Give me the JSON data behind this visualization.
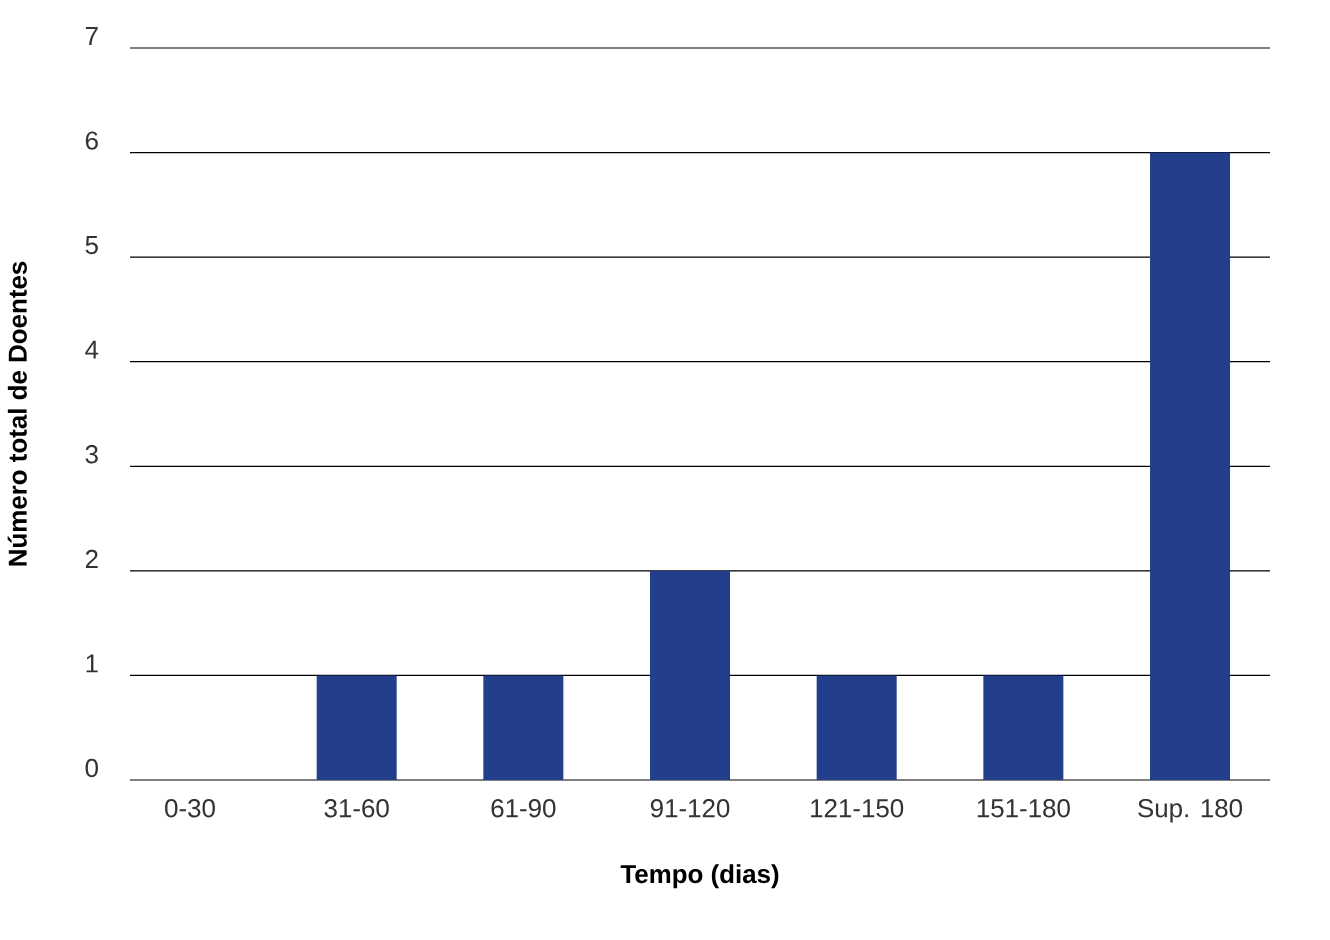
{
  "chart_data": {
    "type": "bar",
    "categories": [
      "0-30",
      "31-60",
      "61-90",
      "91-120",
      "121-150",
      "151-180",
      "Sup. 180"
    ],
    "values": [
      0,
      1,
      1,
      2,
      1,
      1,
      6
    ],
    "color": "#233e8b",
    "xlabel": "Tempo (dias)",
    "ylabel": "Número total de Doentes",
    "ylim": [
      0,
      7
    ],
    "yticks": [
      0,
      1,
      2,
      3,
      4,
      5,
      6,
      7
    ],
    "grid": "y"
  }
}
